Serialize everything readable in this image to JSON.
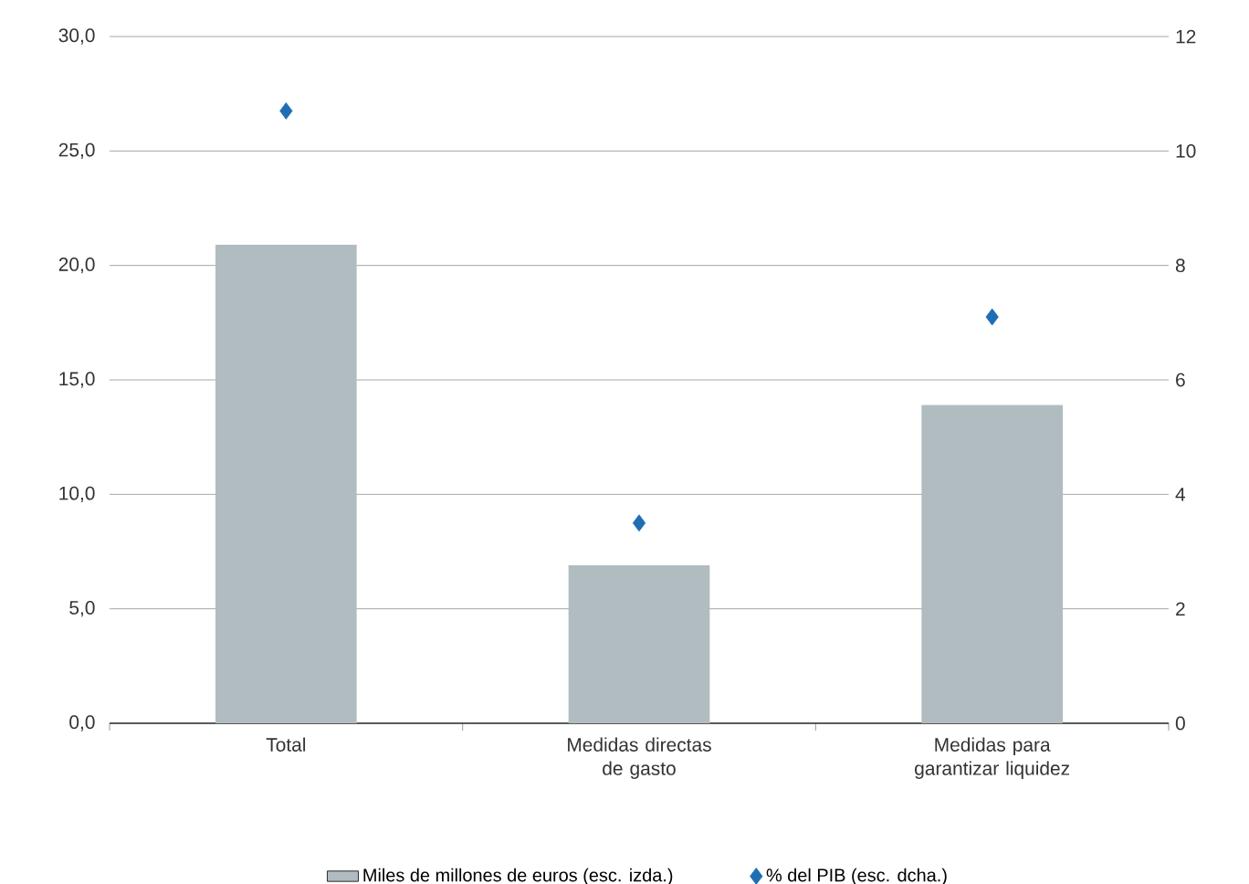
{
  "chart_data": {
    "type": "bar",
    "categories": [
      "Total",
      "Medidas directas de gasto",
      "Medidas para garantizar liquidez"
    ],
    "series": [
      {
        "name": "Miles de millones de euros (esc. izda.)",
        "color": "#b1bcc1",
        "values": [
          20.9,
          6.9,
          13.9
        ]
      },
      {
        "name": "% del PIB (esc. dcha.)",
        "type": "scatter",
        "axis": "y2",
        "color": "#1f6eb4",
        "marker": "diamond",
        "values": [
          10.7,
          3.5,
          7.1
        ]
      }
    ],
    "ylim": [
      0,
      30
    ],
    "yticks": [
      {
        "value": 0,
        "label": "0,0"
      },
      {
        "value": 5,
        "label": "5,0"
      },
      {
        "value": 10,
        "label": "10,0"
      },
      {
        "value": 15,
        "label": "15,0"
      },
      {
        "value": 20,
        "label": "20,0"
      },
      {
        "value": 25,
        "label": "25,0"
      },
      {
        "value": 30,
        "label": "30,0"
      }
    ],
    "y2lim": [
      0,
      12
    ],
    "y2ticks": [
      0,
      2,
      4,
      6,
      8,
      10,
      12
    ],
    "grid": "y",
    "legend": "bottom"
  }
}
